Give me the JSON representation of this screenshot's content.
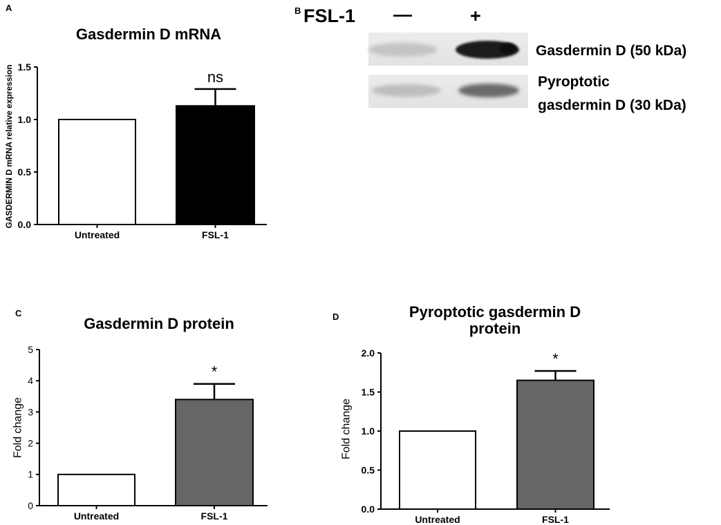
{
  "colors": {
    "white_bar": "#ffffff",
    "black_bar": "#000000",
    "gray_bar": "#666666",
    "axis": "#000000"
  },
  "panel_b": {
    "letter": "B",
    "treatment_label": "FSL-1",
    "minus_sign": "—",
    "plus_sign": "+",
    "band_labels": [
      "Gasdermin D (50 kDa)",
      "Pyroptotic",
      "gasdermin D (30 kDa)"
    ]
  },
  "chart_data": [
    {
      "panel": "A",
      "type": "bar",
      "title": "Gasdermin D mRNA",
      "ylabel": "GASDERMIN D mRNA relative expression",
      "xlabel": "",
      "categories": [
        "Untreated",
        "FSL-1"
      ],
      "values": [
        1.0,
        1.13
      ],
      "errors": [
        0,
        0.16
      ],
      "bar_colors": [
        "#ffffff",
        "#000000"
      ],
      "significance": [
        "",
        "ns"
      ],
      "ylim": [
        0,
        1.5
      ],
      "yticks": [
        "0.0",
        "0.5",
        "1.0",
        "1.5"
      ],
      "ytick_values": [
        0,
        0.5,
        1.0,
        1.5
      ],
      "grid": false
    },
    {
      "panel": "C",
      "type": "bar",
      "title": "Gasdermin D protein",
      "ylabel": "Fold change",
      "xlabel": "",
      "categories": [
        "Untreated",
        "FSL-1"
      ],
      "values": [
        1.0,
        3.4
      ],
      "errors": [
        0,
        0.5
      ],
      "bar_colors": [
        "#ffffff",
        "#666666"
      ],
      "significance": [
        "",
        "*"
      ],
      "ylim": [
        0,
        5
      ],
      "yticks": [
        "0",
        "1",
        "2",
        "3",
        "4",
        "5"
      ],
      "ytick_values": [
        0,
        1,
        2,
        3,
        4,
        5
      ],
      "grid": false
    },
    {
      "panel": "D",
      "type": "bar",
      "title": "Pyroptotic gasdermin D protein",
      "title_lines": [
        "Pyroptotic gasdermin D",
        "protein"
      ],
      "ylabel": "Fold change",
      "xlabel": "",
      "categories": [
        "Untreated",
        "FSL-1"
      ],
      "values": [
        1.0,
        1.65
      ],
      "errors": [
        0,
        0.12
      ],
      "bar_colors": [
        "#ffffff",
        "#666666"
      ],
      "significance": [
        "",
        "*"
      ],
      "ylim": [
        0,
        2.0
      ],
      "yticks": [
        "0.0",
        "0.5",
        "1.0",
        "1.5",
        "2.0"
      ],
      "ytick_values": [
        0,
        0.5,
        1.0,
        1.5,
        2.0
      ],
      "grid": false
    }
  ]
}
